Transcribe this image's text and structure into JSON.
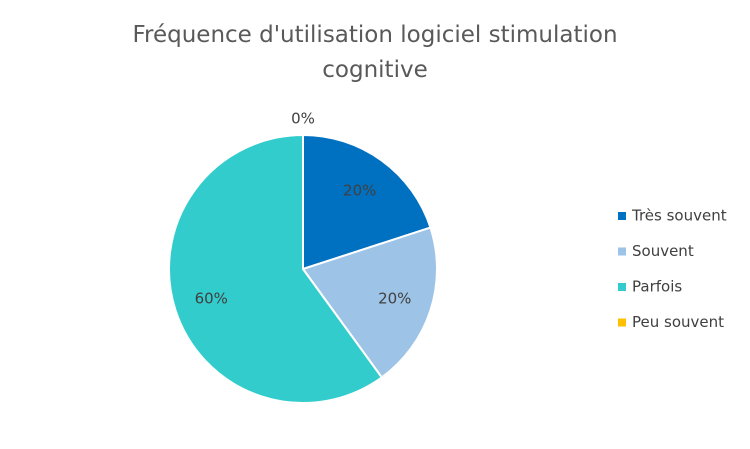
{
  "chart_data": {
    "type": "pie",
    "title": "Fréquence d'utilisation logiciel stimulation cognitive",
    "categories": [
      "Très souvent",
      "Souvent",
      "Parfois",
      "Peu souvent"
    ],
    "values": [
      20,
      20,
      60,
      0
    ],
    "value_labels": [
      "20%",
      "20%",
      "60%",
      "0%"
    ],
    "colors": [
      "#0070c0",
      "#9dc3e6",
      "#33cccc",
      "#ffc000"
    ],
    "legend": "right"
  }
}
